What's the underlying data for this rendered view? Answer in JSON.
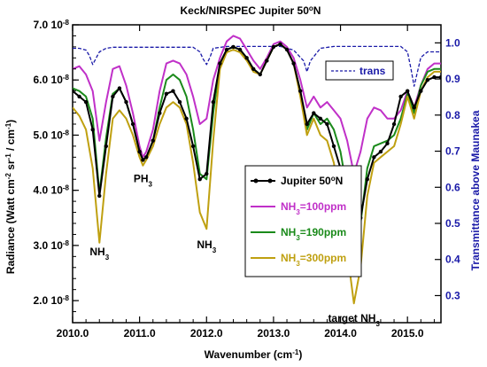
{
  "chart_data": {
    "type": "line",
    "title": "Keck/NIRSPEC Jupiter 50",
    "title_sup": "o",
    "title_tail": "N",
    "xlabel": "Wavenumber (cm",
    "xlabel_sup": "-1",
    "xlabel_tail": ")",
    "ylabel": "Radiance (Watt cm",
    "ylabel_parts": [
      {
        "t": "Radiance (Watt cm",
        "s": ""
      },
      {
        "t": "-2",
        "s": "sup"
      },
      {
        "t": " sr",
        "s": ""
      },
      {
        "t": "-1",
        "s": "sup"
      },
      {
        "t": " / cm",
        "s": ""
      },
      {
        "t": "-1",
        "s": "sup"
      },
      {
        "t": ")",
        "s": ""
      }
    ],
    "y2label": "Transmittance above Maunakea",
    "xlim": [
      2010.0,
      2015.5
    ],
    "ylim": [
      1.6e-08,
      7e-08
    ],
    "y2lim": [
      0.225,
      1.05
    ],
    "x_ticks": [
      2010.0,
      2011.0,
      2012.0,
      2013.0,
      2014.0,
      2015.0
    ],
    "x_tick_labels": [
      "2010.0",
      "2011.0",
      "2012.0",
      "2013.0",
      "2014.0",
      "2015.0"
    ],
    "y_ticks": [
      {
        "value": 2e-08,
        "mant": "2.0",
        "exp": "10",
        "pow": "-8"
      },
      {
        "value": 3e-08,
        "mant": "3.0",
        "exp": "10",
        "pow": "-8"
      },
      {
        "value": 4e-08,
        "mant": "4.0",
        "exp": "10",
        "pow": "-8"
      },
      {
        "value": 5e-08,
        "mant": "5.0",
        "exp": "10",
        "pow": "-8"
      },
      {
        "value": 6e-08,
        "mant": "6.0",
        "exp": "10",
        "pow": "-8"
      },
      {
        "value": 7e-08,
        "mant": "7.0",
        "exp": "10",
        "pow": "-8"
      }
    ],
    "y2_ticks": [
      0.3,
      0.4,
      0.5,
      0.6,
      0.7,
      0.8,
      0.9,
      1.0
    ],
    "y2_tick_labels": [
      "0.3",
      "0.4",
      "0.5",
      "0.6",
      "0.7",
      "0.8",
      "0.9",
      "1.0"
    ],
    "right_axis_color": "#1a1aa8",
    "grid": false,
    "series": [
      {
        "name": "Jupiter 50",
        "name_sup": "o",
        "name_tail": "N",
        "color": "#000000",
        "style": "line-markers",
        "axis": "left",
        "x": [
          2010.0,
          2010.1,
          2010.2,
          2010.3,
          2010.4,
          2010.5,
          2010.6,
          2010.7,
          2010.8,
          2010.9,
          2011.0,
          2011.05,
          2011.1,
          2011.2,
          2011.3,
          2011.4,
          2011.5,
          2011.6,
          2011.7,
          2011.8,
          2011.9,
          2012.0,
          2012.1,
          2012.2,
          2012.3,
          2012.4,
          2012.5,
          2012.6,
          2012.7,
          2012.8,
          2012.9,
          2013.0,
          2013.1,
          2013.2,
          2013.3,
          2013.4,
          2013.5,
          2013.6,
          2013.7,
          2013.8,
          2013.9,
          2014.0,
          2014.1,
          2014.2,
          2014.3,
          2014.4,
          2014.5,
          2014.6,
          2014.7,
          2014.8,
          2014.9,
          2015.0,
          2015.1,
          2015.2,
          2015.3,
          2015.4,
          2015.5
        ],
        "y": [
          5.8e-08,
          5.7e-08,
          5.6e-08,
          5.1e-08,
          3.9e-08,
          4.8e-08,
          5.7e-08,
          5.85e-08,
          5.6e-08,
          5.2e-08,
          4.7e-08,
          4.55e-08,
          4.6e-08,
          4.9e-08,
          5.4e-08,
          5.75e-08,
          5.8e-08,
          5.6e-08,
          5.3e-08,
          4.8e-08,
          4.2e-08,
          4.3e-08,
          5.6e-08,
          6.3e-08,
          6.55e-08,
          6.6e-08,
          6.55e-08,
          6.4e-08,
          6.2e-08,
          6.1e-08,
          6.35e-08,
          6.6e-08,
          6.65e-08,
          6.55e-08,
          6.3e-08,
          5.8e-08,
          5.2e-08,
          5.4e-08,
          5.3e-08,
          5.2e-08,
          4.8e-08,
          4.4e-08,
          3.8e-08,
          3.15e-08,
          3.5e-08,
          4.2e-08,
          4.6e-08,
          4.7e-08,
          4.85e-08,
          5.2e-08,
          5.7e-08,
          5.8e-08,
          5.5e-08,
          5.8e-08,
          6e-08,
          6.05e-08,
          6.05e-08
        ]
      },
      {
        "name": "NH",
        "name_sub": "3",
        "name_tail": "=100ppm",
        "color": "#c030c8",
        "style": "line",
        "axis": "left",
        "x": [
          2010.0,
          2010.1,
          2010.2,
          2010.3,
          2010.4,
          2010.5,
          2010.6,
          2010.7,
          2010.8,
          2010.9,
          2011.0,
          2011.05,
          2011.1,
          2011.2,
          2011.3,
          2011.4,
          2011.5,
          2011.6,
          2011.7,
          2011.8,
          2011.9,
          2012.0,
          2012.1,
          2012.2,
          2012.3,
          2012.4,
          2012.5,
          2012.6,
          2012.7,
          2012.8,
          2012.9,
          2013.0,
          2013.1,
          2013.2,
          2013.3,
          2013.4,
          2013.5,
          2013.6,
          2013.7,
          2013.8,
          2013.9,
          2014.0,
          2014.1,
          2014.2,
          2014.3,
          2014.4,
          2014.5,
          2014.6,
          2014.7,
          2014.8,
          2014.9,
          2015.0,
          2015.1,
          2015.2,
          2015.3,
          2015.4,
          2015.5
        ],
        "y": [
          6.2e-08,
          6.25e-08,
          6.1e-08,
          5.8e-08,
          4.9e-08,
          5.6e-08,
          6.2e-08,
          6.25e-08,
          5.9e-08,
          5.4e-08,
          4.8e-08,
          4.6e-08,
          4.7e-08,
          5.1e-08,
          5.8e-08,
          6.3e-08,
          6.35e-08,
          6.3e-08,
          6.1e-08,
          5.7e-08,
          5.2e-08,
          5.3e-08,
          6e-08,
          6.4e-08,
          6.7e-08,
          6.8e-08,
          6.75e-08,
          6.55e-08,
          6.35e-08,
          6.2e-08,
          6.4e-08,
          6.65e-08,
          6.7e-08,
          6.6e-08,
          6.4e-08,
          6e-08,
          5.5e-08,
          5.7e-08,
          5.5e-08,
          5.6e-08,
          5.45e-08,
          5.3e-08,
          4.9e-08,
          4.3e-08,
          4.7e-08,
          5.3e-08,
          5.5e-08,
          5.45e-08,
          5.3e-08,
          5.3e-08,
          5.45e-08,
          5.8e-08,
          5.5e-08,
          5.9e-08,
          6.2e-08,
          6.3e-08,
          6.3e-08
        ]
      },
      {
        "name": "NH",
        "name_sub": "3",
        "name_tail": "=190ppm",
        "color": "#1a8a1a",
        "style": "line",
        "axis": "left",
        "x": [
          2010.0,
          2010.1,
          2010.2,
          2010.3,
          2010.4,
          2010.5,
          2010.6,
          2010.7,
          2010.8,
          2010.9,
          2011.0,
          2011.05,
          2011.1,
          2011.2,
          2011.3,
          2011.4,
          2011.5,
          2011.6,
          2011.7,
          2011.8,
          2011.9,
          2012.0,
          2012.1,
          2012.2,
          2012.3,
          2012.4,
          2012.5,
          2012.6,
          2012.7,
          2012.8,
          2012.9,
          2013.0,
          2013.1,
          2013.2,
          2013.3,
          2013.4,
          2013.5,
          2013.6,
          2013.7,
          2013.8,
          2013.9,
          2014.0,
          2014.1,
          2014.2,
          2014.3,
          2014.4,
          2014.5,
          2014.6,
          2014.7,
          2014.8,
          2014.9,
          2015.0,
          2015.1,
          2015.2,
          2015.3,
          2015.4,
          2015.5
        ],
        "y": [
          5.85e-08,
          5.8e-08,
          5.7e-08,
          5.3e-08,
          3.95e-08,
          4.95e-08,
          5.75e-08,
          5.85e-08,
          5.6e-08,
          5.2e-08,
          4.7e-08,
          4.55e-08,
          4.6e-08,
          4.9e-08,
          5.5e-08,
          6e-08,
          6.1e-08,
          6e-08,
          5.7e-08,
          5.1e-08,
          4.3e-08,
          4.2e-08,
          5.4e-08,
          6.3e-08,
          6.55e-08,
          6.6e-08,
          6.55e-08,
          6.4e-08,
          6.2e-08,
          6.1e-08,
          6.35e-08,
          6.6e-08,
          6.65e-08,
          6.55e-08,
          6.3e-08,
          5.8e-08,
          5.1e-08,
          5.4e-08,
          5.2e-08,
          5.3e-08,
          5.1e-08,
          4.7e-08,
          4e-08,
          2.95e-08,
          3.4e-08,
          4.4e-08,
          4.8e-08,
          4.85e-08,
          4.9e-08,
          5e-08,
          5.3e-08,
          5.75e-08,
          5.4e-08,
          5.9e-08,
          6.15e-08,
          6.2e-08,
          6.2e-08
        ]
      },
      {
        "name": "NH",
        "name_sub": "3",
        "name_tail": "=300ppm",
        "color": "#bfa010",
        "style": "line",
        "axis": "left",
        "x": [
          2010.0,
          2010.1,
          2010.2,
          2010.3,
          2010.4,
          2010.5,
          2010.6,
          2010.7,
          2010.8,
          2010.9,
          2011.0,
          2011.05,
          2011.1,
          2011.2,
          2011.3,
          2011.4,
          2011.5,
          2011.6,
          2011.7,
          2011.8,
          2011.9,
          2012.0,
          2012.1,
          2012.2,
          2012.3,
          2012.4,
          2012.5,
          2012.6,
          2012.7,
          2012.8,
          2012.9,
          2013.0,
          2013.1,
          2013.2,
          2013.3,
          2013.4,
          2013.5,
          2013.6,
          2013.7,
          2013.8,
          2013.9,
          2014.0,
          2014.1,
          2014.2,
          2014.3,
          2014.4,
          2014.5,
          2014.6,
          2014.7,
          2014.8,
          2014.9,
          2015.0,
          2015.1,
          2015.2,
          2015.3,
          2015.4,
          2015.5
        ],
        "y": [
          5.5e-08,
          5.35e-08,
          5.1e-08,
          4.4e-08,
          3.05e-08,
          4.3e-08,
          5.3e-08,
          5.45e-08,
          5.3e-08,
          5e-08,
          4.6e-08,
          4.45e-08,
          4.55e-08,
          4.8e-08,
          5.2e-08,
          5.5e-08,
          5.6e-08,
          5.5e-08,
          5.2e-08,
          4.5e-08,
          3.6e-08,
          3.3e-08,
          4.9e-08,
          6.2e-08,
          6.5e-08,
          6.55e-08,
          6.5e-08,
          6.35e-08,
          6.15e-08,
          6.1e-08,
          6.35e-08,
          6.6e-08,
          6.65e-08,
          6.55e-08,
          6.3e-08,
          5.7e-08,
          5e-08,
          5.3e-08,
          5e-08,
          4.9e-08,
          4.5e-08,
          3.8e-08,
          2.9e-08,
          1.95e-08,
          2.6e-08,
          3.9e-08,
          4.5e-08,
          4.6e-08,
          4.7e-08,
          4.8e-08,
          5.2e-08,
          5.7e-08,
          5.3e-08,
          5.8e-08,
          6.05e-08,
          6.15e-08,
          6.15e-08
        ]
      },
      {
        "name": "trans",
        "color": "#1a1aa8",
        "style": "dashed",
        "axis": "right",
        "x": [
          2010.0,
          2010.1,
          2010.2,
          2010.25,
          2010.3,
          2010.4,
          2010.5,
          2010.6,
          2010.7,
          2010.8,
          2010.9,
          2011.0,
          2011.2,
          2011.4,
          2011.6,
          2011.8,
          2011.9,
          2011.95,
          2012.0,
          2012.05,
          2012.1,
          2012.3,
          2012.5,
          2012.7,
          2012.9,
          2013.1,
          2013.3,
          2013.45,
          2013.5,
          2013.55,
          2013.7,
          2013.9,
          2014.1,
          2014.3,
          2014.5,
          2014.7,
          2014.9,
          2015.0,
          2015.05,
          2015.1,
          2015.15,
          2015.2,
          2015.3,
          2015.4,
          2015.5
        ],
        "y": [
          0.985,
          0.985,
          0.98,
          0.965,
          0.94,
          0.975,
          0.985,
          0.988,
          0.988,
          0.988,
          0.988,
          0.988,
          0.988,
          0.988,
          0.988,
          0.988,
          0.975,
          0.955,
          0.94,
          0.96,
          0.985,
          0.99,
          0.99,
          0.99,
          0.99,
          0.99,
          0.98,
          0.95,
          0.92,
          0.95,
          0.985,
          0.99,
          0.99,
          0.99,
          0.99,
          0.99,
          0.99,
          0.975,
          0.93,
          0.88,
          0.92,
          0.96,
          0.975,
          0.975,
          0.975
        ]
      }
    ],
    "legend": {
      "position": "center-right",
      "entries": [
        0,
        1,
        2,
        3
      ]
    },
    "trans_legend": {
      "position": "top-right",
      "entry": 4
    },
    "annotations": [
      {
        "text": "NH",
        "sub": "3",
        "x": 2010.4,
        "y": 2.82e-08
      },
      {
        "text": "PH",
        "sub": "3",
        "x": 2011.05,
        "y": 4.15e-08
      },
      {
        "text": "NH",
        "sub": "3",
        "x": 2012.0,
        "y": 2.95e-08
      },
      {
        "text": "target NH",
        "sub": "3",
        "x": 2014.2,
        "y": 1.62e-08
      }
    ]
  }
}
